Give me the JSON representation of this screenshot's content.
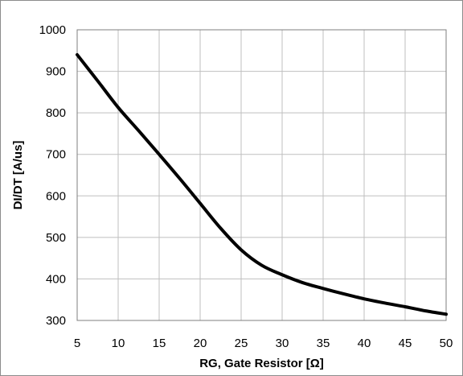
{
  "chart_data": {
    "type": "line",
    "title": "",
    "xlabel": "RG, Gate Resistor [Ω]",
    "ylabel": "DI/DT [A/us]",
    "xlim": [
      5,
      50
    ],
    "ylim": [
      300,
      1000
    ],
    "xticks": [
      5,
      10,
      15,
      20,
      25,
      30,
      35,
      40,
      45,
      50
    ],
    "yticks": [
      300,
      400,
      500,
      600,
      700,
      800,
      900,
      1000
    ],
    "grid": true,
    "legend": "none",
    "series": [
      {
        "color": "#000000",
        "x": [
          5,
          7.5,
          10,
          12.5,
          15,
          17.5,
          20,
          22.5,
          25,
          27.5,
          30,
          32.5,
          35,
          37.5,
          40,
          42.5,
          45,
          47.5,
          50
        ],
        "y": [
          940,
          877,
          813,
          757,
          700,
          642,
          582,
          522,
          470,
          433,
          410,
          391,
          377,
          364,
          352,
          342,
          333,
          323,
          315
        ]
      }
    ]
  }
}
